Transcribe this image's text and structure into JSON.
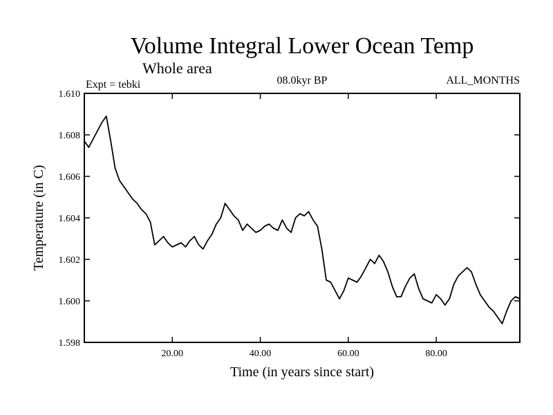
{
  "chart_data": {
    "type": "line",
    "title": "Volume Integral Lower Ocean Temp",
    "subtitle": "Whole area",
    "annotations": {
      "experiment": "Expt = tebki",
      "period": "08.0kyr BP",
      "months": "ALL_MONTHS"
    },
    "xlabel": "Time (in years since start)",
    "ylabel": "Temperature (in C)",
    "xlim": [
      0,
      99
    ],
    "ylim": [
      1.598,
      1.61
    ],
    "x_ticks": [
      20,
      40,
      60,
      80
    ],
    "x_tick_labels": [
      "20.00",
      "40.00",
      "60.00",
      "80.00"
    ],
    "y_ticks": [
      1.598,
      1.6,
      1.602,
      1.604,
      1.606,
      1.608,
      1.61
    ],
    "y_tick_labels": [
      "1.598",
      "1.600",
      "1.602",
      "1.604",
      "1.606",
      "1.608",
      "1.610"
    ],
    "grid": false,
    "series": [
      {
        "name": "Volume Integral Lower Ocean Temp",
        "color": "#000000",
        "x": [
          0,
          1,
          2,
          3,
          4,
          5,
          6,
          7,
          8,
          9,
          10,
          11,
          12,
          13,
          14,
          15,
          16,
          17,
          18,
          19,
          20,
          21,
          22,
          23,
          24,
          25,
          26,
          27,
          28,
          29,
          30,
          31,
          32,
          33,
          34,
          35,
          36,
          37,
          38,
          39,
          40,
          41,
          42,
          43,
          44,
          45,
          46,
          47,
          48,
          49,
          50,
          51,
          52,
          53,
          54,
          55,
          56,
          57,
          58,
          59,
          60,
          61,
          62,
          63,
          64,
          65,
          66,
          67,
          68,
          69,
          70,
          71,
          72,
          73,
          74,
          75,
          76,
          77,
          78,
          79,
          80,
          81,
          82,
          83,
          84,
          85,
          86,
          87,
          88,
          89,
          90,
          91,
          92,
          93,
          94,
          95,
          96,
          97,
          98,
          99
        ],
        "values": [
          1.6077,
          1.6074,
          1.6078,
          1.6082,
          1.6086,
          1.6089,
          1.6077,
          1.6064,
          1.6058,
          1.6055,
          1.6052,
          1.6049,
          1.6047,
          1.6044,
          1.6042,
          1.6038,
          1.6027,
          1.6029,
          1.6031,
          1.6028,
          1.6026,
          1.6027,
          1.6028,
          1.6026,
          1.6029,
          1.6031,
          1.6027,
          1.6025,
          1.6029,
          1.6032,
          1.6037,
          1.604,
          1.6047,
          1.6044,
          1.6041,
          1.6039,
          1.6034,
          1.6037,
          1.6035,
          1.6033,
          1.6034,
          1.6036,
          1.6037,
          1.6035,
          1.6034,
          1.6039,
          1.6035,
          1.6033,
          1.604,
          1.6042,
          1.6041,
          1.6043,
          1.6039,
          1.6036,
          1.6025,
          1.601,
          1.6009,
          1.6005,
          1.6001,
          1.6005,
          1.6011,
          1.601,
          1.6009,
          1.6012,
          1.6016,
          1.602,
          1.6018,
          1.6022,
          1.6019,
          1.6014,
          1.6007,
          1.6002,
          1.6002,
          1.6007,
          1.6011,
          1.6013,
          1.6006,
          1.6001,
          1.6,
          1.5999,
          1.6003,
          1.6001,
          1.5998,
          1.6001,
          1.6008,
          1.6012,
          1.6014,
          1.6016,
          1.6014,
          1.6008,
          1.6003,
          1.6,
          1.5997,
          1.5995,
          1.5992,
          1.5989,
          1.5995,
          1.6,
          1.6002,
          1.6001
        ]
      }
    ]
  }
}
